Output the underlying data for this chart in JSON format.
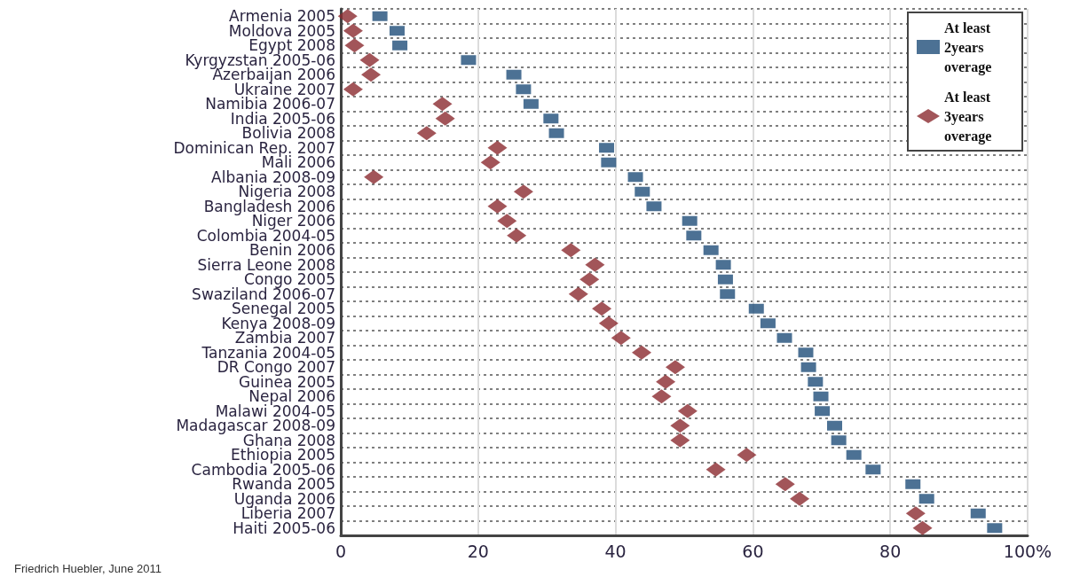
{
  "chart_data": {
    "type": "scatter",
    "orientation": "horizontal",
    "categories": [
      "Armenia 2005",
      "Moldova 2005",
      "Egypt 2008",
      "Kyrgyzstan 2005-06",
      "Azerbaijan 2006",
      "Ukraine 2007",
      "Namibia 2006-07",
      "India 2005-06",
      "Bolivia 2008",
      "Dominican Rep. 2007",
      "Mali 2006",
      "Albania 2008-09",
      "Nigeria 2008",
      "Bangladesh 2006",
      "Niger 2006",
      "Colombia 2004-05",
      "Benin 2006",
      "Sierra Leone 2008",
      "Congo 2005",
      "Swaziland 2006-07",
      "Senegal 2005",
      "Kenya 2008-09",
      "Zambia 2007",
      "Tanzania 2004-05",
      "DR Congo 2007",
      "Guinea 2005",
      "Nepal 2006",
      "Malawi 2004-05",
      "Madagascar 2008-09",
      "Ghana 2008",
      "Ethiopia 2005",
      "Cambodia 2005-06",
      "Rwanda 2005",
      "Uganda 2006",
      "Liberia 2007",
      "Haiti 2005-06"
    ],
    "series": [
      {
        "name": "At least 2years overage",
        "color": "#1f4e79",
        "marker": "square",
        "values": [
          5.7,
          8.2,
          8.6,
          18.6,
          25.2,
          26.6,
          27.7,
          30.6,
          31.4,
          38.7,
          39,
          42.9,
          43.9,
          45.6,
          50.8,
          51.4,
          53.9,
          55.7,
          56,
          56.3,
          60.5,
          62.2,
          64.6,
          67.7,
          68.1,
          69.1,
          69.9,
          70.1,
          71.9,
          72.5,
          74.7,
          77.5,
          83.3,
          85.3,
          92.8,
          95.2
        ]
      },
      {
        "name": "At least 3years overage",
        "color": "#8b2a2f",
        "marker": "diamond",
        "values": [
          1,
          1.8,
          2,
          4.2,
          4.4,
          1.8,
          14.8,
          15.2,
          12.5,
          22.8,
          21.8,
          4.8,
          26.6,
          22.8,
          24.2,
          25.6,
          33.5,
          37,
          36.2,
          34.6,
          38,
          39,
          40.8,
          43.8,
          48.7,
          47.3,
          46.7,
          50.5,
          49.4,
          49.4,
          59.1,
          54.6,
          64.7,
          66.8,
          83.7,
          84.7
        ]
      }
    ],
    "xlim": [
      0,
      100
    ],
    "xticks": [
      0,
      20,
      40,
      60,
      80,
      {
        "value": 100,
        "label": "100%"
      }
    ],
    "grid": true,
    "legend": "top right",
    "annotations": [
      "Friedrich Huebler, June 2011"
    ]
  }
}
